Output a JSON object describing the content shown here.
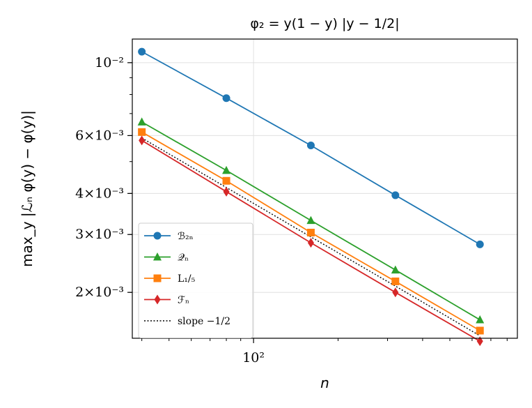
{
  "chart_data": {
    "type": "line",
    "title": "φ₂ = y(1 − y) |y − 1/2|",
    "xlabel": "n",
    "ylabel": "max_y |ℒₙ φ(y) − φ(y)|",
    "xscale": "log",
    "yscale": "log",
    "xlim": [
      37,
      870
    ],
    "ylim": [
      0.00145,
      0.0118
    ],
    "grid": true,
    "legend_position": "lower-left",
    "x": [
      40,
      80,
      160,
      320,
      640
    ],
    "x_tick_labels": [
      {
        "value": 100,
        "label": "10²"
      }
    ],
    "y_tick_labels": [
      {
        "value": 0.01,
        "label": "10⁻²"
      },
      {
        "value": 0.006,
        "label": "6×10⁻³"
      },
      {
        "value": 0.004,
        "label": "4×10⁻³"
      },
      {
        "value": 0.003,
        "label": "3×10⁻³"
      },
      {
        "value": 0.002,
        "label": "2×10⁻³"
      }
    ],
    "series": [
      {
        "name": "ℬ₂ₙ",
        "color": "#1f77b4",
        "marker": "circle",
        "values": [
          0.0108,
          0.0078,
          0.0056,
          0.00395,
          0.0028
        ]
      },
      {
        "name": "𝒬ₙ",
        "color": "#2ca02c",
        "marker": "triangle",
        "values": [
          0.0066,
          0.0047,
          0.00331,
          0.00234,
          0.00165
        ]
      },
      {
        "name": "L₁/₅",
        "color": "#ff7f0e",
        "marker": "square",
        "values": [
          0.00615,
          0.00437,
          0.00304,
          0.00216,
          0.00153
        ]
      },
      {
        "name": "ℱₙ",
        "color": "#d62728",
        "marker": "diamond",
        "values": [
          0.0058,
          0.00405,
          0.00283,
          0.002,
          0.00142
        ]
      },
      {
        "name": "slope −1/2",
        "color": "#000000",
        "marker": "none",
        "dashed": true,
        "values": [
          0.0059,
          0.00417,
          0.00295,
          0.00209,
          0.001475
        ]
      }
    ]
  }
}
